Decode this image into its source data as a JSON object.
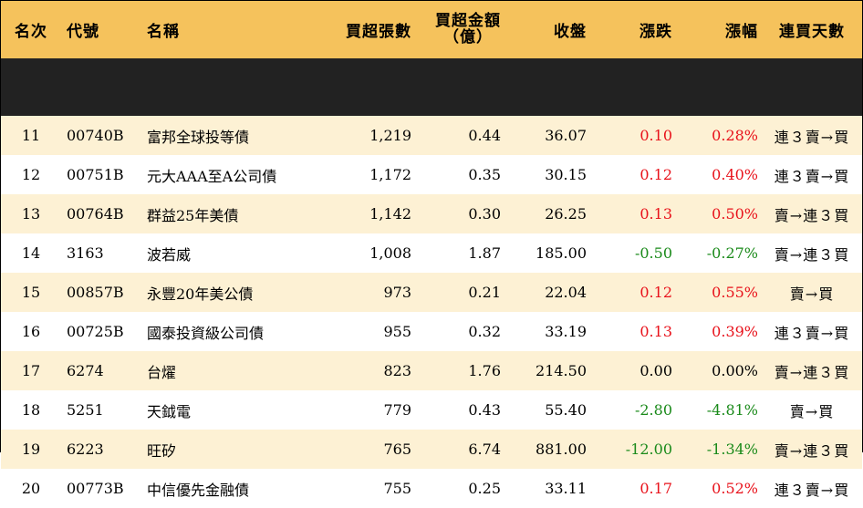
{
  "header": {
    "rank": "名次",
    "code": "代號",
    "name": "名稱",
    "volume": "買超張數",
    "amount_line1": "買超金額",
    "amount_line2": "（億）",
    "close": "收盤",
    "change": "漲跌",
    "pct": "漲幅",
    "days": "連買天數"
  },
  "colors": {
    "up": "#e8111a",
    "down": "#1a8a1a",
    "header_bg": "#f5c25c",
    "stripe": "#fdf1d4"
  },
  "rows": [
    {
      "rank": "11",
      "code": "00740B",
      "name": "富邦全球投等債",
      "volume": "1,219",
      "amount": "0.44",
      "close": "36.07",
      "change": "0.10",
      "pct": "0.28%",
      "dir": "up",
      "days": "連３賣→買"
    },
    {
      "rank": "12",
      "code": "00751B",
      "name": "元大AAA至A公司債",
      "volume": "1,172",
      "amount": "0.35",
      "close": "30.15",
      "change": "0.12",
      "pct": "0.40%",
      "dir": "up",
      "days": "連３賣→買"
    },
    {
      "rank": "13",
      "code": "00764B",
      "name": "群益25年美債",
      "volume": "1,142",
      "amount": "0.30",
      "close": "26.25",
      "change": "0.13",
      "pct": "0.50%",
      "dir": "up",
      "days": "賣→連３買"
    },
    {
      "rank": "14",
      "code": "3163",
      "name": "波若威",
      "volume": "1,008",
      "amount": "1.87",
      "close": "185.00",
      "change": "-0.50",
      "pct": "-0.27%",
      "dir": "down",
      "days": "賣→連３買"
    },
    {
      "rank": "15",
      "code": "00857B",
      "name": "永豐20年美公債",
      "volume": "973",
      "amount": "0.21",
      "close": "22.04",
      "change": "0.12",
      "pct": "0.55%",
      "dir": "up",
      "days": "賣→買"
    },
    {
      "rank": "16",
      "code": "00725B",
      "name": "國泰投資級公司債",
      "volume": "955",
      "amount": "0.32",
      "close": "33.19",
      "change": "0.13",
      "pct": "0.39%",
      "dir": "up",
      "days": "連３賣→買"
    },
    {
      "rank": "17",
      "code": "6274",
      "name": "台燿",
      "volume": "823",
      "amount": "1.76",
      "close": "214.50",
      "change": "0.00",
      "pct": "0.00%",
      "dir": "flat",
      "days": "賣→連３買"
    },
    {
      "rank": "18",
      "code": "5251",
      "name": "天鉞電",
      "volume": "779",
      "amount": "0.43",
      "close": "55.40",
      "change": "-2.80",
      "pct": "-4.81%",
      "dir": "down",
      "days": "賣→買"
    },
    {
      "rank": "19",
      "code": "6223",
      "name": "旺矽",
      "volume": "765",
      "amount": "6.74",
      "close": "881.00",
      "change": "-12.00",
      "pct": "-1.34%",
      "dir": "down",
      "days": "賣→連３買"
    },
    {
      "rank": "20",
      "code": "00773B",
      "name": "中信優先金融債",
      "volume": "755",
      "amount": "0.25",
      "close": "33.11",
      "change": "0.17",
      "pct": "0.52%",
      "dir": "up",
      "days": "連３賣→買"
    }
  ]
}
